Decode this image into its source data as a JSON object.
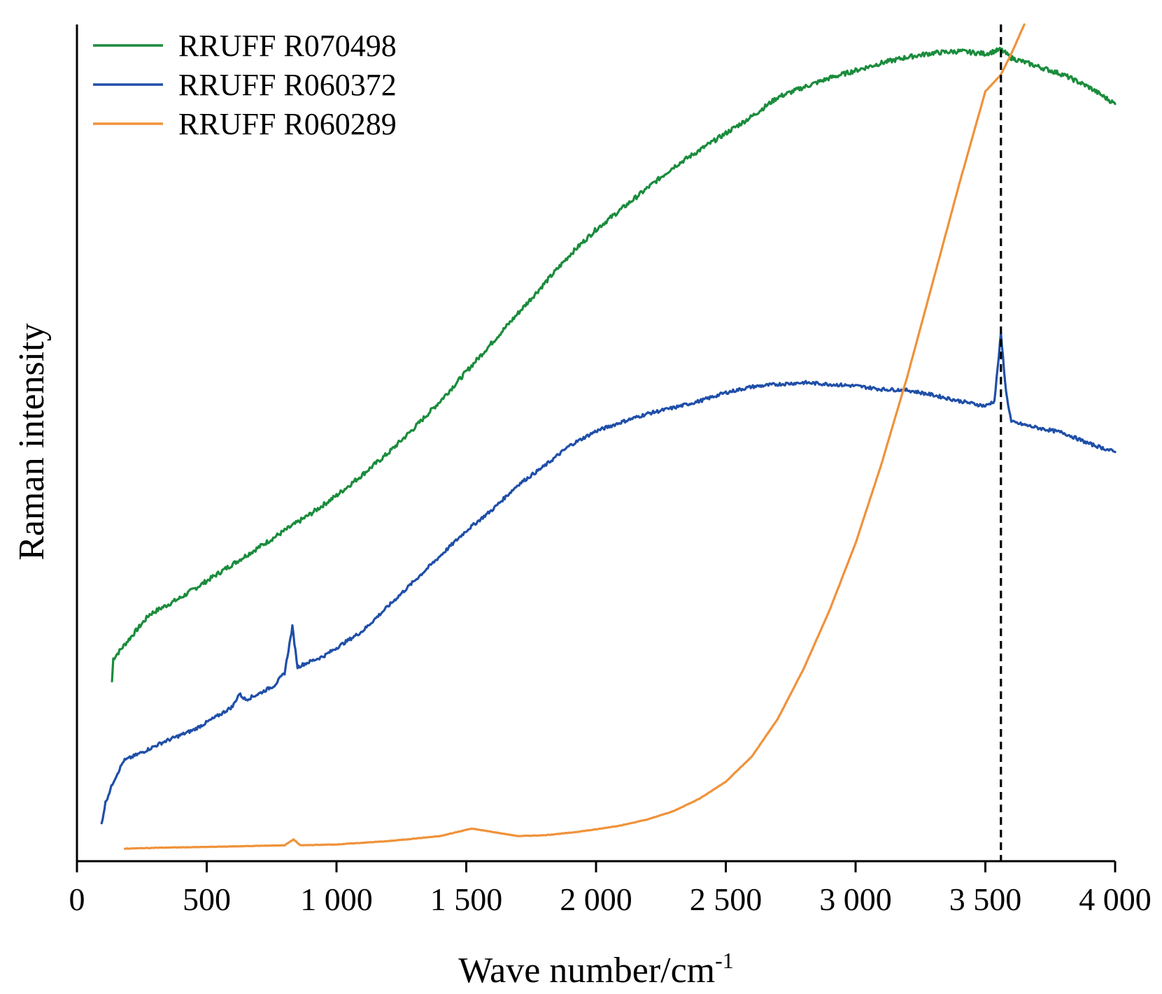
{
  "chart_data": {
    "type": "line",
    "title": "",
    "xlabel": "Wave number/cm",
    "xlabel_superscript": "-1",
    "ylabel": "Raman intensity",
    "xlim": [
      0,
      4000
    ],
    "ylim": [
      0,
      100
    ],
    "y_tick_labels_shown": false,
    "grid": false,
    "legend_position": "top-left",
    "x_ticks": [
      {
        "value": 0,
        "label": "0"
      },
      {
        "value": 500,
        "label": "500"
      },
      {
        "value": 1000,
        "label": "1 000"
      },
      {
        "value": 1500,
        "label": "1 500"
      },
      {
        "value": 2000,
        "label": "2 000"
      },
      {
        "value": 2500,
        "label": "2 500"
      },
      {
        "value": 3000,
        "label": "3 000"
      },
      {
        "value": 3500,
        "label": "3 500"
      },
      {
        "value": 4000,
        "label": "4 000"
      }
    ],
    "reference_line": {
      "x": 3560,
      "style": "dashed",
      "color": "#000000"
    },
    "series": [
      {
        "name": "RRUFF R070498",
        "color": "#1a8c3c",
        "points": [
          [
            135,
            21.5
          ],
          [
            140,
            24.2
          ],
          [
            200,
            26.5
          ],
          [
            280,
            29.5
          ],
          [
            400,
            31.5
          ],
          [
            500,
            33.5
          ],
          [
            600,
            35.5
          ],
          [
            700,
            37.5
          ],
          [
            800,
            39.5
          ],
          [
            900,
            41.5
          ],
          [
            1000,
            43.7
          ],
          [
            1100,
            46.2
          ],
          [
            1200,
            48.8
          ],
          [
            1300,
            51.8
          ],
          [
            1400,
            55
          ],
          [
            1500,
            58.5
          ],
          [
            1600,
            62
          ],
          [
            1700,
            65.5
          ],
          [
            1800,
            69
          ],
          [
            1900,
            72.5
          ],
          [
            2000,
            75.5
          ],
          [
            2100,
            78
          ],
          [
            2200,
            80.5
          ],
          [
            2300,
            83
          ],
          [
            2400,
            85
          ],
          [
            2500,
            87
          ],
          [
            2600,
            89
          ],
          [
            2700,
            91.3
          ],
          [
            2800,
            92.5
          ],
          [
            2900,
            93.6
          ],
          [
            3000,
            94.5
          ],
          [
            3100,
            95.4
          ],
          [
            3200,
            96.1
          ],
          [
            3300,
            96.6
          ],
          [
            3400,
            96.8
          ],
          [
            3500,
            96.5
          ],
          [
            3560,
            97
          ],
          [
            3600,
            96
          ],
          [
            3700,
            95
          ],
          [
            3800,
            94
          ],
          [
            3900,
            92.5
          ],
          [
            4000,
            90.5
          ]
        ]
      },
      {
        "name": "RRUFF R060372",
        "color": "#1f4fa8",
        "points": [
          [
            95,
            4.5
          ],
          [
            110,
            7
          ],
          [
            140,
            9.5
          ],
          [
            180,
            12
          ],
          [
            250,
            13
          ],
          [
            330,
            14.2
          ],
          [
            450,
            15.7
          ],
          [
            550,
            17.5
          ],
          [
            600,
            18.5
          ],
          [
            625,
            20
          ],
          [
            650,
            19.3
          ],
          [
            700,
            20
          ],
          [
            760,
            21
          ],
          [
            800,
            22.5
          ],
          [
            830,
            28
          ],
          [
            850,
            23.2
          ],
          [
            870,
            23.5
          ],
          [
            950,
            24.5
          ],
          [
            1000,
            25.5
          ],
          [
            1100,
            27.5
          ],
          [
            1200,
            30.5
          ],
          [
            1300,
            33.5
          ],
          [
            1400,
            36.5
          ],
          [
            1500,
            39.5
          ],
          [
            1600,
            42
          ],
          [
            1700,
            45
          ],
          [
            1800,
            47.2
          ],
          [
            1900,
            49.7
          ],
          [
            2000,
            51.4
          ],
          [
            2100,
            52.5
          ],
          [
            2200,
            53.5
          ],
          [
            2300,
            54.2
          ],
          [
            2400,
            55
          ],
          [
            2500,
            56
          ],
          [
            2600,
            56.7
          ],
          [
            2700,
            57
          ],
          [
            2800,
            57.2
          ],
          [
            2900,
            57
          ],
          [
            3000,
            56.8
          ],
          [
            3100,
            56.4
          ],
          [
            3200,
            56.3
          ],
          [
            3300,
            55.7
          ],
          [
            3400,
            55
          ],
          [
            3500,
            54.4
          ],
          [
            3535,
            55
          ],
          [
            3560,
            63
          ],
          [
            3580,
            56
          ],
          [
            3600,
            52.5
          ],
          [
            3700,
            51.8
          ],
          [
            3800,
            51.2
          ],
          [
            3900,
            49.9
          ],
          [
            4000,
            48.9
          ]
        ]
      },
      {
        "name": "RRUFF R060289",
        "color": "#f0923a",
        "points": [
          [
            185,
            1.5
          ],
          [
            300,
            1.6
          ],
          [
            500,
            1.7
          ],
          [
            800,
            1.9
          ],
          [
            835,
            2.6
          ],
          [
            860,
            1.9
          ],
          [
            1000,
            2
          ],
          [
            1200,
            2.4
          ],
          [
            1400,
            3
          ],
          [
            1520,
            3.9
          ],
          [
            1600,
            3.5
          ],
          [
            1700,
            3
          ],
          [
            1800,
            3.1
          ],
          [
            1900,
            3.4
          ],
          [
            2000,
            3.8
          ],
          [
            2100,
            4.3
          ],
          [
            2200,
            5
          ],
          [
            2300,
            6
          ],
          [
            2400,
            7.5
          ],
          [
            2500,
            9.5
          ],
          [
            2600,
            12.5
          ],
          [
            2700,
            17
          ],
          [
            2800,
            23
          ],
          [
            2900,
            30
          ],
          [
            3000,
            38
          ],
          [
            3100,
            47.5
          ],
          [
            3200,
            58
          ],
          [
            3300,
            69.5
          ],
          [
            3400,
            81
          ],
          [
            3500,
            92
          ],
          [
            3560,
            94
          ],
          [
            3600,
            96.5
          ],
          [
            3650,
            100
          ]
        ]
      }
    ]
  }
}
